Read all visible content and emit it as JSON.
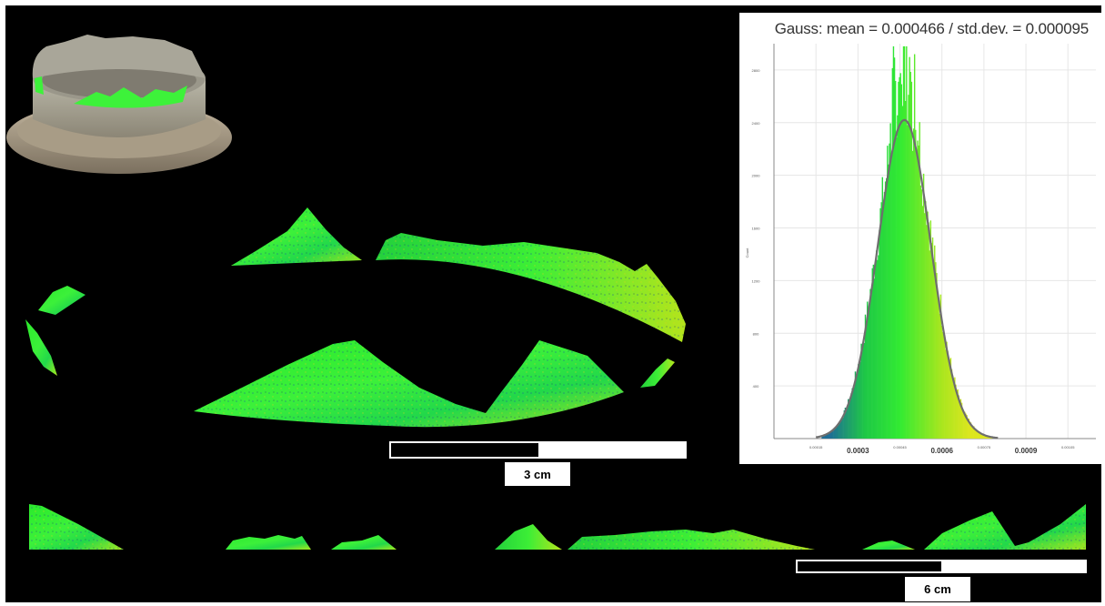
{
  "figure": {
    "colors": {
      "background": "#000000",
      "surface_low": "#1a64a8",
      "surface_mid": "#22e622",
      "surface_high": "#e6e21a",
      "gauss_curve": "#6e6e6e"
    },
    "thumbnail": {
      "name": "3d-model-thumbnail"
    },
    "scale_bars": [
      {
        "label": "3 cm",
        "fill_fraction": 0.5
      },
      {
        "label": "6 cm",
        "fill_fraction": 0.5
      }
    ]
  },
  "chart_data": {
    "type": "bar",
    "title": "Gauss: mean = 0.000466 / std.dev. = 0.000095",
    "xlabel": "",
    "ylabel": "Count",
    "xlim": [
      0.0,
      0.00115
    ],
    "ylim": [
      0,
      3000
    ],
    "x_ticks_major": [
      "0.0003",
      "0.0006",
      "0.0009"
    ],
    "x_ticks_minor": [
      "0.00015",
      "0.00045",
      "0.00075",
      "0.00105"
    ],
    "y_ticks": [
      "400",
      "800",
      "1200",
      "1600",
      "2000",
      "2400",
      "2800"
    ],
    "gauss": {
      "mean": 0.000466,
      "std_dev": 9.5e-05,
      "peak": 2420
    },
    "grid": true
  }
}
